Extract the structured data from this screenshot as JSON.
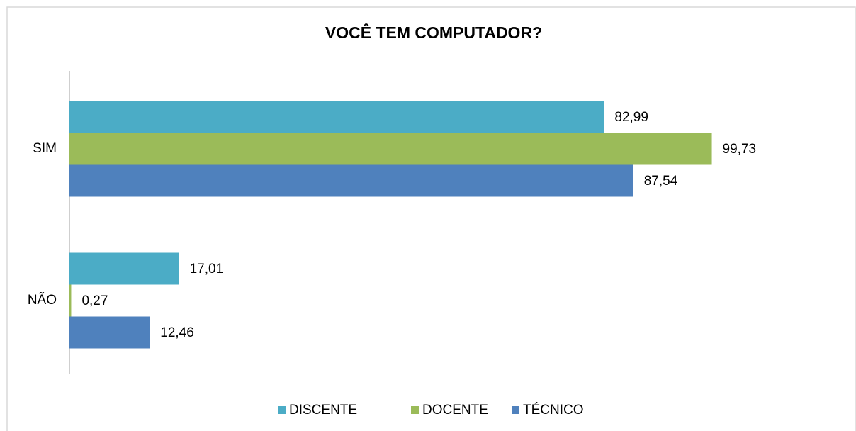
{
  "chart_data": {
    "type": "barh",
    "title": "VOCÊ TEM COMPUTADOR?",
    "categories": [
      "SIM",
      "NÃO"
    ],
    "series": [
      {
        "name": "DISCENTE",
        "color": "#4bacc6",
        "values": [
          82.99,
          17.01
        ],
        "value_labels": [
          "82,99",
          "17,01"
        ]
      },
      {
        "name": "DOCENTE",
        "color": "#9bbb59",
        "values": [
          99.73,
          0.27
        ],
        "value_labels": [
          "99,73",
          "0,27"
        ]
      },
      {
        "name": "TÉCNICO",
        "color": "#4f81bd",
        "values": [
          87.54,
          12.46
        ],
        "value_labels": [
          "87,54",
          "12,46"
        ]
      }
    ],
    "xlim": [
      0,
      100
    ],
    "legend": "bottom"
  }
}
